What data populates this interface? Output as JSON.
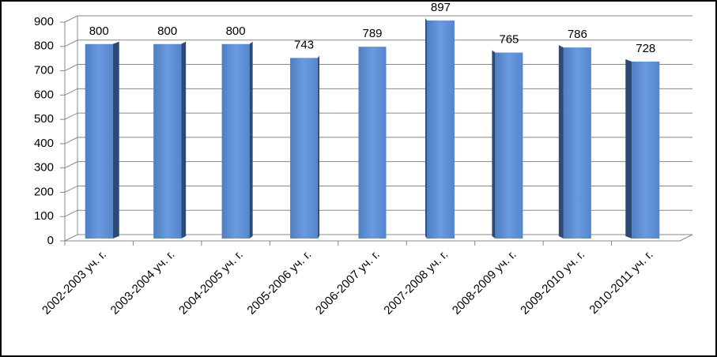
{
  "chart_data": {
    "type": "bar",
    "categories": [
      "2002-2003 уч. г.",
      "2003-2004 уч. г.",
      "2004-2005 уч. г.",
      "2005-2006 уч. г.",
      "2006-2007 уч. г.",
      "2007-2008 уч. г.",
      "2008-2009 уч. г.",
      "2009-2010 уч. г.",
      "2010-2011 уч. г."
    ],
    "values": [
      800,
      800,
      800,
      743,
      789,
      897,
      765,
      786,
      728
    ],
    "color": "#5a8bd0",
    "ylim": [
      0,
      900
    ],
    "yticks": [
      0,
      100,
      200,
      300,
      400,
      500,
      600,
      700,
      800,
      900
    ],
    "grid": true
  }
}
